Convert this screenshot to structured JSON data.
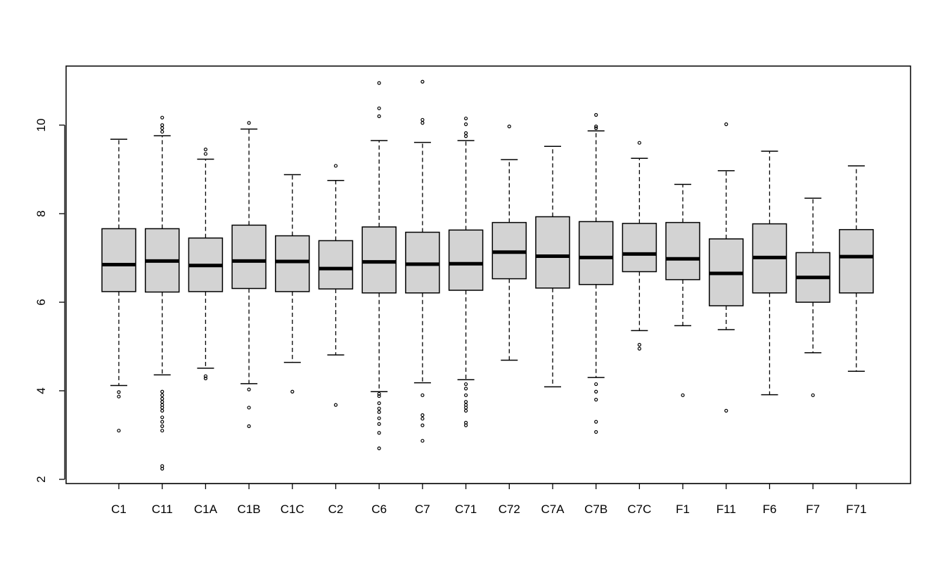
{
  "chart_data": {
    "type": "boxplot",
    "title": "",
    "xlabel": "",
    "ylabel": "",
    "ylim": [
      1.95,
      11.5
    ],
    "yticks": [
      2,
      4,
      6,
      8,
      10
    ],
    "ytick_labels": [
      "2",
      "4",
      "6",
      "8",
      "10"
    ],
    "grid": false,
    "colors": {
      "box_fill": "#d3d3d3",
      "line": "#000000",
      "background": "#ffffff"
    },
    "categories": [
      "C1",
      "C11",
      "C1A",
      "C1B",
      "C1C",
      "C2",
      "C6",
      "C7",
      "C71",
      "C72",
      "C7A",
      "C7B",
      "C7C",
      "F1",
      "F11",
      "F6",
      "F7",
      "F71"
    ],
    "boxes": [
      {
        "category": "C1",
        "whisker_low": 4.12,
        "q1": 6.24,
        "median": 6.85,
        "q3": 7.66,
        "whisker_high": 9.68,
        "outliers": [
          3.1,
          3.87,
          3.97
        ]
      },
      {
        "category": "C11",
        "whisker_low": 4.36,
        "q1": 6.23,
        "median": 6.93,
        "q3": 7.66,
        "whisker_high": 9.76,
        "outliers": [
          2.24,
          2.3,
          3.1,
          3.2,
          3.3,
          3.4,
          3.55,
          3.62,
          3.68,
          3.75,
          3.82,
          3.9,
          3.98,
          9.85,
          9.93,
          10.0,
          10.17
        ]
      },
      {
        "category": "C1A",
        "whisker_low": 4.51,
        "q1": 6.24,
        "median": 6.83,
        "q3": 7.45,
        "whisker_high": 9.23,
        "outliers": [
          4.28,
          4.33,
          9.35,
          9.45
        ]
      },
      {
        "category": "C1B",
        "whisker_low": 4.16,
        "q1": 6.31,
        "median": 6.93,
        "q3": 7.74,
        "whisker_high": 9.91,
        "outliers": [
          3.2,
          3.62,
          4.03,
          10.05
        ]
      },
      {
        "category": "C1C",
        "whisker_low": 4.64,
        "q1": 6.24,
        "median": 6.92,
        "q3": 7.5,
        "whisker_high": 8.88,
        "outliers": [
          3.98
        ]
      },
      {
        "category": "C2",
        "whisker_low": 4.81,
        "q1": 6.3,
        "median": 6.76,
        "q3": 7.39,
        "whisker_high": 8.75,
        "outliers": [
          3.68,
          9.08
        ]
      },
      {
        "category": "C6",
        "whisker_low": 3.98,
        "q1": 6.21,
        "median": 6.91,
        "q3": 7.7,
        "whisker_high": 9.65,
        "outliers": [
          2.7,
          3.05,
          3.25,
          3.38,
          3.52,
          3.6,
          3.72,
          3.88,
          3.93,
          10.2,
          10.38,
          10.95
        ]
      },
      {
        "category": "C7",
        "whisker_low": 4.18,
        "q1": 6.21,
        "median": 6.86,
        "q3": 7.58,
        "whisker_high": 9.61,
        "outliers": [
          2.87,
          3.22,
          3.37,
          3.45,
          3.9,
          10.05,
          10.12,
          10.98
        ]
      },
      {
        "category": "C71",
        "whisker_low": 4.25,
        "q1": 6.27,
        "median": 6.87,
        "q3": 7.63,
        "whisker_high": 9.65,
        "outliers": [
          3.22,
          3.28,
          3.55,
          3.62,
          3.68,
          3.75,
          3.9,
          4.05,
          4.15,
          9.75,
          9.82,
          10.02,
          10.15
        ]
      },
      {
        "category": "C72",
        "whisker_low": 4.69,
        "q1": 6.53,
        "median": 7.13,
        "q3": 7.8,
        "whisker_high": 9.22,
        "outliers": [
          9.97
        ]
      },
      {
        "category": "C7A",
        "whisker_low": 4.09,
        "q1": 6.32,
        "median": 7.04,
        "q3": 7.93,
        "whisker_high": 9.52,
        "outliers": []
      },
      {
        "category": "C7B",
        "whisker_low": 4.3,
        "q1": 6.4,
        "median": 7.01,
        "q3": 7.82,
        "whisker_high": 9.87,
        "outliers": [
          3.07,
          3.3,
          3.8,
          3.98,
          4.15,
          9.93,
          9.97,
          10.23
        ]
      },
      {
        "category": "C7C",
        "whisker_low": 5.36,
        "q1": 6.69,
        "median": 7.09,
        "q3": 7.78,
        "whisker_high": 9.25,
        "outliers": [
          4.95,
          5.04,
          9.6
        ]
      },
      {
        "category": "F1",
        "whisker_low": 5.47,
        "q1": 6.51,
        "median": 6.98,
        "q3": 7.8,
        "whisker_high": 8.66,
        "outliers": [
          3.9
        ]
      },
      {
        "category": "F11",
        "whisker_low": 5.38,
        "q1": 5.92,
        "median": 6.65,
        "q3": 7.43,
        "whisker_high": 8.97,
        "outliers": [
          3.55,
          10.02
        ]
      },
      {
        "category": "F6",
        "whisker_low": 3.91,
        "q1": 6.21,
        "median": 7.01,
        "q3": 7.77,
        "whisker_high": 9.41,
        "outliers": []
      },
      {
        "category": "F7",
        "whisker_low": 4.86,
        "q1": 6.0,
        "median": 6.56,
        "q3": 7.12,
        "whisker_high": 8.35,
        "outliers": [
          3.9
        ]
      },
      {
        "category": "F71",
        "whisker_low": 4.44,
        "q1": 6.21,
        "median": 7.03,
        "q3": 7.64,
        "whisker_high": 9.08,
        "outliers": []
      }
    ]
  }
}
